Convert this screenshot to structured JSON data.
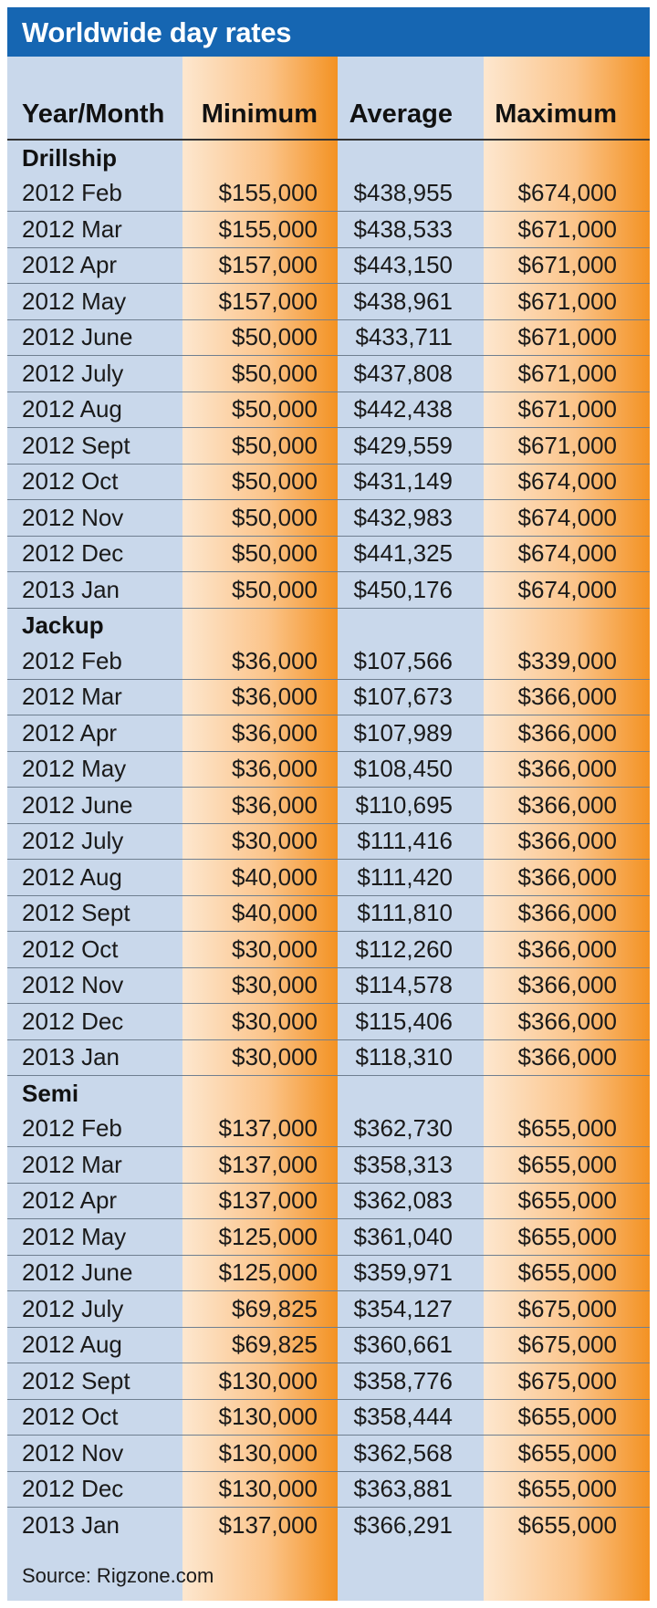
{
  "title": "Worldwide day rates",
  "source": "Source: Rigzone.com",
  "colors": {
    "title_bar": "#1666b2",
    "background": "#c9d8eb",
    "highlight_orange": "#f39223"
  },
  "chart_data": {
    "type": "table",
    "title": "Worldwide day rates",
    "columns": [
      "Year/Month",
      "Minimum",
      "Average",
      "Maximum"
    ],
    "sections": [
      {
        "name": "Drillship",
        "rows": [
          [
            "2012 Feb",
            "$155,000",
            "$438,955",
            "$674,000"
          ],
          [
            "2012 Mar",
            "$155,000",
            "$438,533",
            "$671,000"
          ],
          [
            "2012 Apr",
            "$157,000",
            "$443,150",
            "$671,000"
          ],
          [
            "2012 May",
            "$157,000",
            "$438,961",
            "$671,000"
          ],
          [
            "2012 June",
            "$50,000",
            "$433,711",
            "$671,000"
          ],
          [
            "2012 July",
            "$50,000",
            "$437,808",
            "$671,000"
          ],
          [
            "2012 Aug",
            "$50,000",
            "$442,438",
            "$671,000"
          ],
          [
            "2012 Sept",
            "$50,000",
            "$429,559",
            "$671,000"
          ],
          [
            "2012 Oct",
            "$50,000",
            "$431,149",
            "$674,000"
          ],
          [
            "2012 Nov",
            "$50,000",
            "$432,983",
            "$674,000"
          ],
          [
            "2012 Dec",
            "$50,000",
            "$441,325",
            "$674,000"
          ],
          [
            "2013 Jan",
            "$50,000",
            "$450,176",
            "$674,000"
          ]
        ]
      },
      {
        "name": "Jackup",
        "rows": [
          [
            "2012 Feb",
            "$36,000",
            "$107,566",
            "$339,000"
          ],
          [
            "2012 Mar",
            "$36,000",
            "$107,673",
            "$366,000"
          ],
          [
            "2012 Apr",
            "$36,000",
            "$107,989",
            "$366,000"
          ],
          [
            "2012 May",
            "$36,000",
            "$108,450",
            "$366,000"
          ],
          [
            "2012 June",
            "$36,000",
            "$110,695",
            "$366,000"
          ],
          [
            "2012 July",
            "$30,000",
            "$111,416",
            "$366,000"
          ],
          [
            "2012 Aug",
            "$40,000",
            "$111,420",
            "$366,000"
          ],
          [
            "2012 Sept",
            "$40,000",
            "$111,810",
            "$366,000"
          ],
          [
            "2012 Oct",
            "$30,000",
            "$112,260",
            "$366,000"
          ],
          [
            "2012 Nov",
            "$30,000",
            "$114,578",
            "$366,000"
          ],
          [
            "2012 Dec",
            "$30,000",
            "$115,406",
            "$366,000"
          ],
          [
            "2013 Jan",
            "$30,000",
            "$118,310",
            "$366,000"
          ]
        ]
      },
      {
        "name": "Semi",
        "rows": [
          [
            "2012 Feb",
            "$137,000",
            "$362,730",
            "$655,000"
          ],
          [
            "2012 Mar",
            "$137,000",
            "$358,313",
            "$655,000"
          ],
          [
            "2012 Apr",
            "$137,000",
            "$362,083",
            "$655,000"
          ],
          [
            "2012 May",
            "$125,000",
            "$361,040",
            "$655,000"
          ],
          [
            "2012 June",
            "$125,000",
            "$359,971",
            "$655,000"
          ],
          [
            "2012 July",
            "$69,825",
            "$354,127",
            "$675,000"
          ],
          [
            "2012 Aug",
            "$69,825",
            "$360,661",
            "$675,000"
          ],
          [
            "2012 Sept",
            "$130,000",
            "$358,776",
            "$675,000"
          ],
          [
            "2012 Oct",
            "$130,000",
            "$358,444",
            "$655,000"
          ],
          [
            "2012 Nov",
            "$130,000",
            "$362,568",
            "$655,000"
          ],
          [
            "2012 Dec",
            "$130,000",
            "$363,881",
            "$655,000"
          ],
          [
            "2013 Jan",
            "$137,000",
            "$366,291",
            "$655,000"
          ]
        ]
      }
    ]
  }
}
